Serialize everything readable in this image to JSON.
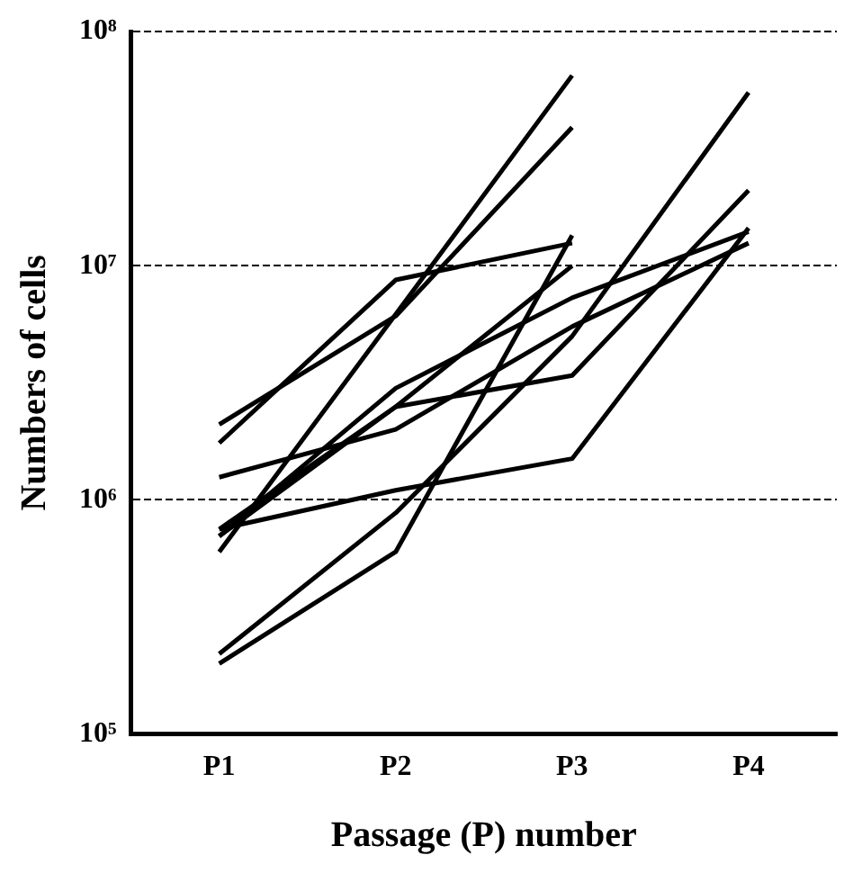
{
  "chart_data": {
    "type": "line",
    "xlabel": "Passage (P) number",
    "ylabel": "Numbers of cells",
    "categories": [
      "P1",
      "P2",
      "P3",
      "P4"
    ],
    "series": [
      {
        "color": "#000000",
        "values": [
          1750000,
          8700000,
          12500000,
          null
        ]
      },
      {
        "color": "#000000",
        "values": [
          2100000,
          6100000,
          39000000,
          null
        ]
      },
      {
        "color": "#000000",
        "values": [
          600000,
          6200000,
          65000000,
          null
        ]
      },
      {
        "color": "#000000",
        "values": [
          700000,
          2500000,
          10000000,
          null
        ]
      },
      {
        "color": "#000000",
        "values": [
          200000,
          600000,
          13500000,
          null
        ]
      },
      {
        "color": "#000000",
        "values": [
          750000,
          1100000,
          1500000,
          14500000
        ]
      },
      {
        "color": "#000000",
        "values": [
          750000,
          2500000,
          3400000,
          21000000
        ]
      },
      {
        "color": "#000000",
        "values": [
          220000,
          880000,
          5000000,
          55000000
        ]
      },
      {
        "color": "#000000",
        "values": [
          1250000,
          2000000,
          5500000,
          12500000
        ]
      },
      {
        "color": "#000000",
        "values": [
          700000,
          3000000,
          7300000,
          14000000
        ]
      }
    ],
    "log": "y",
    "ylim": [
      100000,
      100000000
    ],
    "yticks": [
      {
        "value": 100000,
        "label": "10⁵"
      },
      {
        "value": 1000000,
        "label": "10⁶"
      },
      {
        "value": 10000000,
        "label": "10⁷"
      },
      {
        "value": 100000000,
        "label": "10⁸"
      }
    ],
    "grid": "y",
    "legend": false,
    "marker": "none",
    "line_style": "solid"
  }
}
